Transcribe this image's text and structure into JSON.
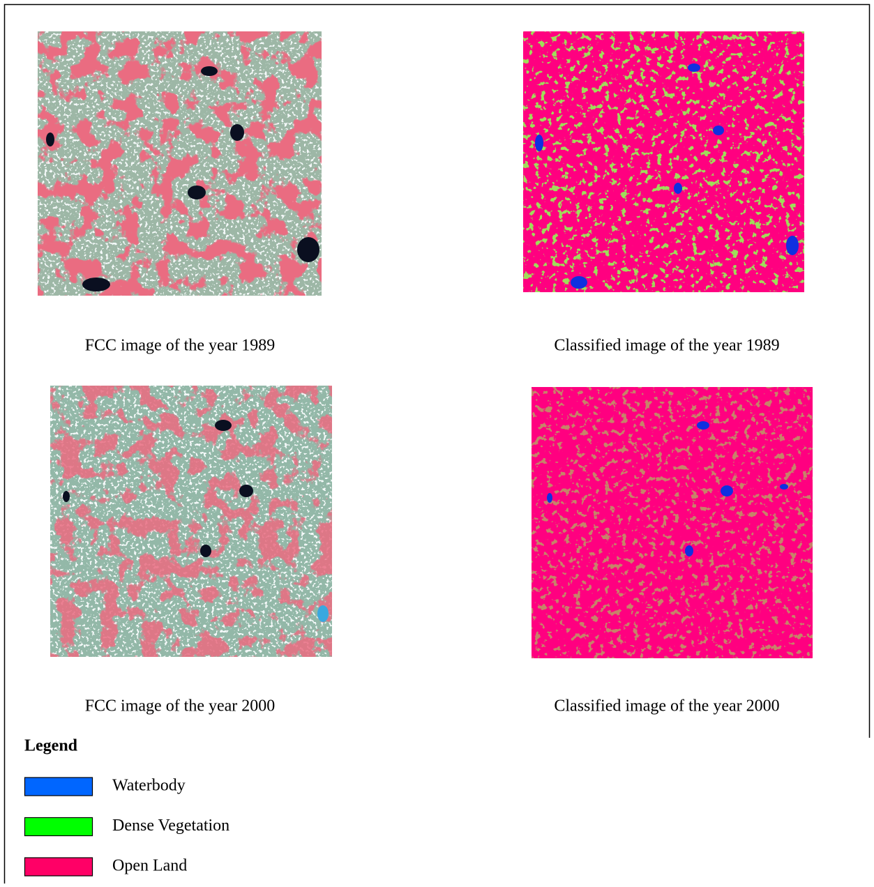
{
  "panels": [
    {
      "caption": "FCC image of the year 1989"
    },
    {
      "caption": "Classified image of the year 1989"
    },
    {
      "caption": "FCC image of the year 2000"
    },
    {
      "caption": "Classified image of the year 2000"
    }
  ],
  "legend": {
    "title": "Legend",
    "items": [
      {
        "label": "Waterbody",
        "color": "#0066ff"
      },
      {
        "label": "Dense Vegetation",
        "color": "#00ff00"
      },
      {
        "label": "Open Land",
        "color": "#ff0066"
      }
    ]
  }
}
